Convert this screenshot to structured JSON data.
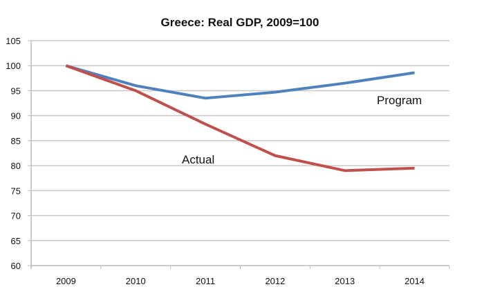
{
  "chart_data": {
    "type": "line",
    "title": "Greece: Real GDP, 2009=100",
    "xlabel": "",
    "ylabel": "",
    "categories": [
      "2009",
      "2010",
      "2011",
      "2012",
      "2013",
      "2014"
    ],
    "series": [
      {
        "name": "Program",
        "color": "#4f81bd",
        "values": [
          100,
          96,
          93.5,
          94.7,
          96.5,
          98.6
        ]
      },
      {
        "name": "Actual",
        "color": "#c0504d",
        "values": [
          100,
          95,
          88.3,
          82,
          79,
          79.5
        ]
      }
    ],
    "ylim": [
      60,
      105
    ],
    "yticks": [
      60,
      65,
      70,
      75,
      80,
      85,
      90,
      95,
      100,
      105
    ],
    "grid": true,
    "legend": "none",
    "annotations": [
      {
        "text": "Program",
        "series": "Program",
        "near": "2013-2014 below line"
      },
      {
        "text": "Actual",
        "series": "Actual",
        "near": "2011 below line"
      }
    ]
  }
}
